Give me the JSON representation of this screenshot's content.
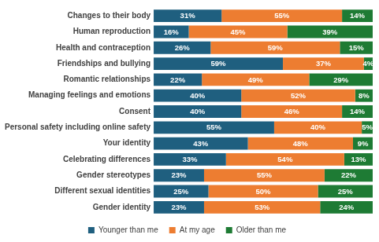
{
  "chart_data": {
    "type": "bar",
    "orientation": "horizontal",
    "stacked": true,
    "data_labels": true,
    "legend": "bottom",
    "grid": false,
    "tick_labels": "y",
    "xlim": [
      0,
      100
    ],
    "categories": [
      "Changes to their body",
      "Human reproduction",
      "Health and contraception",
      "Friendships and bullying",
      "Romantic relationships",
      "Managing feelings and emotions",
      "Consent",
      "Personal safety including online safety",
      "Your identity",
      "Celebrating differences",
      "Gender stereotypes",
      "Different sexual identities",
      "Gender identity"
    ],
    "series": [
      {
        "name": "Younger than me",
        "color": "#1f5f7f",
        "values": [
          31,
          16,
          26,
          59,
          22,
          40,
          40,
          55,
          43,
          33,
          23,
          25,
          23
        ],
        "value_labels": [
          "31%",
          "16%",
          "26%",
          "59%",
          "22%",
          "40%",
          "40%",
          "55%",
          "43%",
          "33%",
          "23%",
          "25%",
          "23%"
        ]
      },
      {
        "name": "At my age",
        "color": "#ed7d31",
        "values": [
          55,
          45,
          59,
          37,
          49,
          52,
          46,
          40,
          48,
          54,
          55,
          50,
          53
        ],
        "value_labels": [
          "55%",
          "45%",
          "59%",
          "37%",
          "49%",
          "52%",
          "46%",
          "40%",
          "48%",
          "54%",
          "55%",
          "50%",
          "53%"
        ]
      },
      {
        "name": "Older than me",
        "color": "#1e7b34",
        "values": [
          14,
          39,
          15,
          4,
          29,
          8,
          14,
          5,
          9,
          13,
          22,
          25,
          24
        ],
        "value_labels": [
          "14%",
          "39%",
          "15%",
          "4%",
          "29%",
          "8%",
          "14%",
          "5%",
          "9%",
          "13%",
          "22%",
          "25%",
          "24%"
        ]
      }
    ]
  }
}
